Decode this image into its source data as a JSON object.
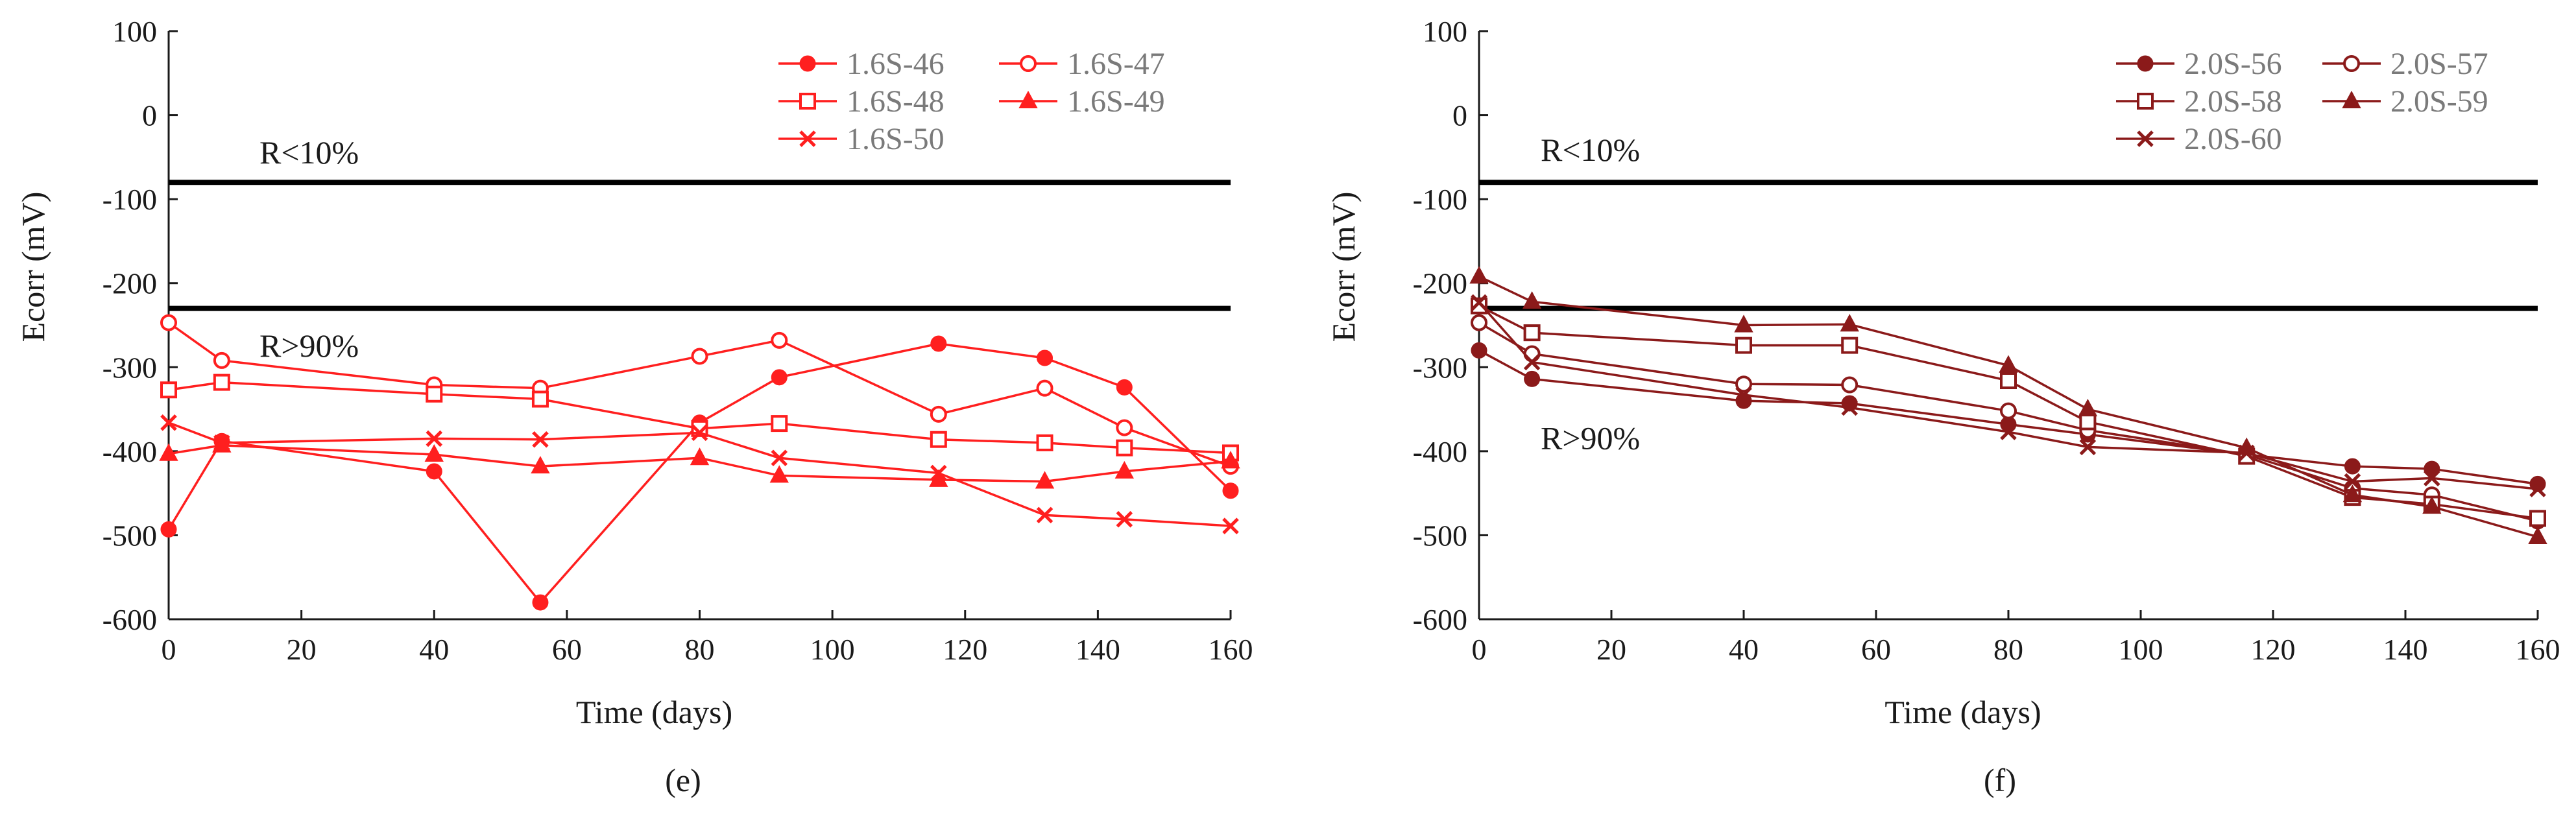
{
  "panels": [
    {
      "id": "e",
      "panel_label": "(e)",
      "series_color": "#ff1f1f",
      "chart_data": {
        "type": "line",
        "xlabel": "Time (days)",
        "ylabel": "Ecorr (mV)",
        "xlim": [
          0,
          160
        ],
        "ylim": [
          -600,
          100
        ],
        "xticks": [
          0,
          20,
          40,
          60,
          80,
          100,
          120,
          140,
          160
        ],
        "yticks": [
          100,
          0,
          -100,
          -200,
          -300,
          -400,
          -500,
          -600
        ],
        "x": [
          0,
          8,
          40,
          56,
          80,
          92,
          116,
          132,
          144,
          160
        ],
        "thresholds": [
          {
            "y": -80,
            "label": "R<10%",
            "label_y": -45
          },
          {
            "y": -230,
            "label": "R>90%",
            "label_y": -275
          }
        ],
        "legend_position": "top-right",
        "series": [
          {
            "name": "1.6S-46",
            "marker": "filled-circle",
            "values": [
              -493,
              -388,
              -424,
              -580,
              -366,
              -312,
              -272,
              -289,
              -324,
              -447
            ]
          },
          {
            "name": "1.6S-47",
            "marker": "open-circle",
            "values": [
              -247,
              -292,
              -321,
              -325,
              -287,
              -268,
              -356,
              -325,
              -372,
              -418
            ]
          },
          {
            "name": "1.6S-48",
            "marker": "open-square",
            "values": [
              -327,
              -318,
              -332,
              -338,
              -373,
              -367,
              -386,
              -390,
              -396,
              -402
            ]
          },
          {
            "name": "1.6S-49",
            "marker": "filled-triangle",
            "values": [
              -403,
              -393,
              -404,
              -418,
              -408,
              -429,
              -434,
              -436,
              -424,
              -412
            ]
          },
          {
            "name": "1.6S-50",
            "marker": "cross",
            "values": [
              -366,
              -390,
              -385,
              -386,
              -378,
              -408,
              -426,
              -476,
              -481,
              -489
            ]
          }
        ]
      }
    },
    {
      "id": "f",
      "panel_label": "(f)",
      "series_color": "#8b1a1a",
      "chart_data": {
        "type": "line",
        "xlabel": "Time (days)",
        "ylabel": "Ecorr (mV)",
        "xlim": [
          0,
          160
        ],
        "ylim": [
          -600,
          100
        ],
        "xticks": [
          0,
          20,
          40,
          60,
          80,
          100,
          120,
          140,
          160
        ],
        "yticks": [
          100,
          0,
          -100,
          -200,
          -300,
          -400,
          -500,
          -600
        ],
        "x": [
          0,
          8,
          40,
          56,
          80,
          92,
          116,
          132,
          144,
          160
        ],
        "thresholds": [
          {
            "y": -80,
            "label": "R<10%",
            "label_y": -42
          },
          {
            "y": -230,
            "label": "R>90%",
            "label_y": -385
          }
        ],
        "legend_position": "top-right",
        "series": [
          {
            "name": "2.0S-56",
            "marker": "filled-circle",
            "values": [
              -280,
              -314,
              -340,
              -343,
              -368,
              -380,
              -404,
              -418,
              -421,
              -439
            ]
          },
          {
            "name": "2.0S-57",
            "marker": "open-circle",
            "values": [
              -247,
              -284,
              -320,
              -321,
              -352,
              -375,
              -404,
              -444,
              -452,
              -483
            ]
          },
          {
            "name": "2.0S-58",
            "marker": "open-square",
            "values": [
              -227,
              -259,
              -274,
              -274,
              -316,
              -365,
              -406,
              -455,
              -463,
              -480
            ]
          },
          {
            "name": "2.0S-59",
            "marker": "filled-triangle",
            "values": [
              -192,
              -222,
              -250,
              -249,
              -298,
              -350,
              -396,
              -452,
              -466,
              -502
            ]
          },
          {
            "name": "2.0S-60",
            "marker": "cross",
            "values": [
              -223,
              -294,
              -333,
              -348,
              -377,
              -395,
              -402,
              -436,
              -432,
              -445
            ]
          }
        ]
      }
    }
  ]
}
